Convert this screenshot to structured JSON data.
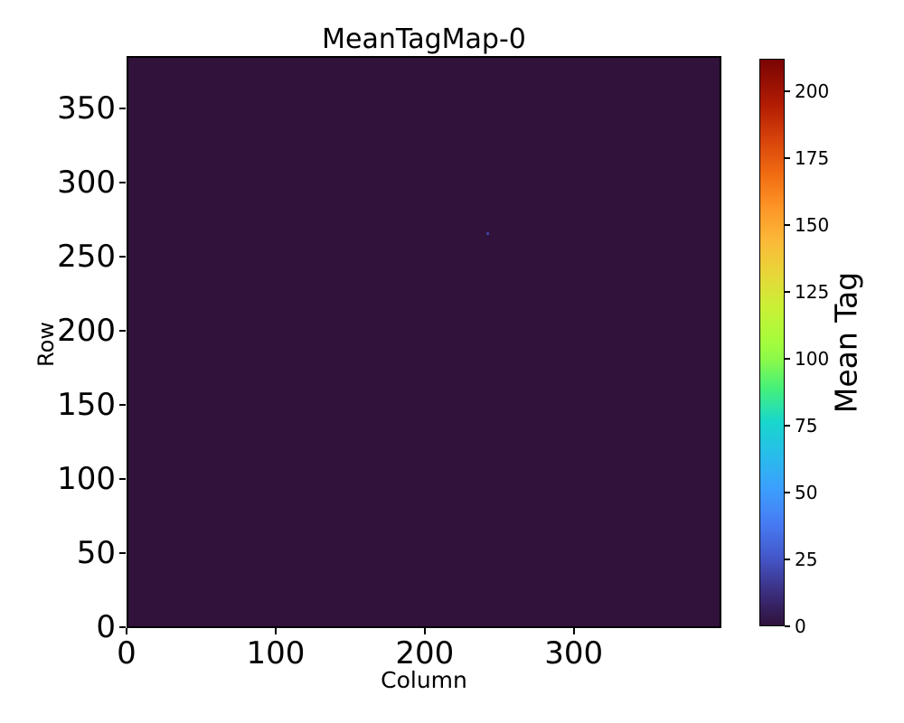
{
  "figure": {
    "background_color": "#ffffff",
    "title": "MeanTagMap-0"
  },
  "chart_data": {
    "type": "heatmap",
    "title": "MeanTagMap-0",
    "xlabel": "Column",
    "ylabel": "Row",
    "xlim": [
      0,
      399
    ],
    "ylim": [
      0,
      386
    ],
    "x_ticks": [
      0,
      100,
      200,
      300
    ],
    "y_ticks": [
      0,
      50,
      100,
      150,
      200,
      250,
      300,
      350
    ],
    "grid": false,
    "legend": "none",
    "background_value": 0,
    "background_color": "#30123b",
    "anomaly_points": [
      {
        "column": 242,
        "row": 266,
        "approx_value": 20,
        "color": "#3e3e9d"
      }
    ],
    "colorbar": {
      "label": "Mean Tag",
      "ticks": [
        0,
        25,
        50,
        75,
        100,
        125,
        150,
        175,
        200
      ],
      "vmin": 0,
      "vmax": 212,
      "colormap": "turbo",
      "gradient_stops": [
        {
          "t": 0.0,
          "color": "#30123b"
        },
        {
          "t": 0.06,
          "color": "#3b2f80"
        },
        {
          "t": 0.12,
          "color": "#4457c9"
        },
        {
          "t": 0.18,
          "color": "#467bf3"
        },
        {
          "t": 0.24,
          "color": "#3d9efe"
        },
        {
          "t": 0.3,
          "color": "#28bceb"
        },
        {
          "t": 0.36,
          "color": "#18d7cc"
        },
        {
          "t": 0.42,
          "color": "#46f178"
        },
        {
          "t": 0.47,
          "color": "#8bf94a"
        },
        {
          "t": 0.5,
          "color": "#a4fc3c"
        },
        {
          "t": 0.56,
          "color": "#c9f135"
        },
        {
          "t": 0.62,
          "color": "#e7d739"
        },
        {
          "t": 0.68,
          "color": "#fbb938"
        },
        {
          "t": 0.74,
          "color": "#fd9426"
        },
        {
          "t": 0.8,
          "color": "#f06a11"
        },
        {
          "t": 0.86,
          "color": "#d6420a"
        },
        {
          "t": 0.92,
          "color": "#b21c03"
        },
        {
          "t": 1.0,
          "color": "#7a0403"
        }
      ]
    }
  }
}
